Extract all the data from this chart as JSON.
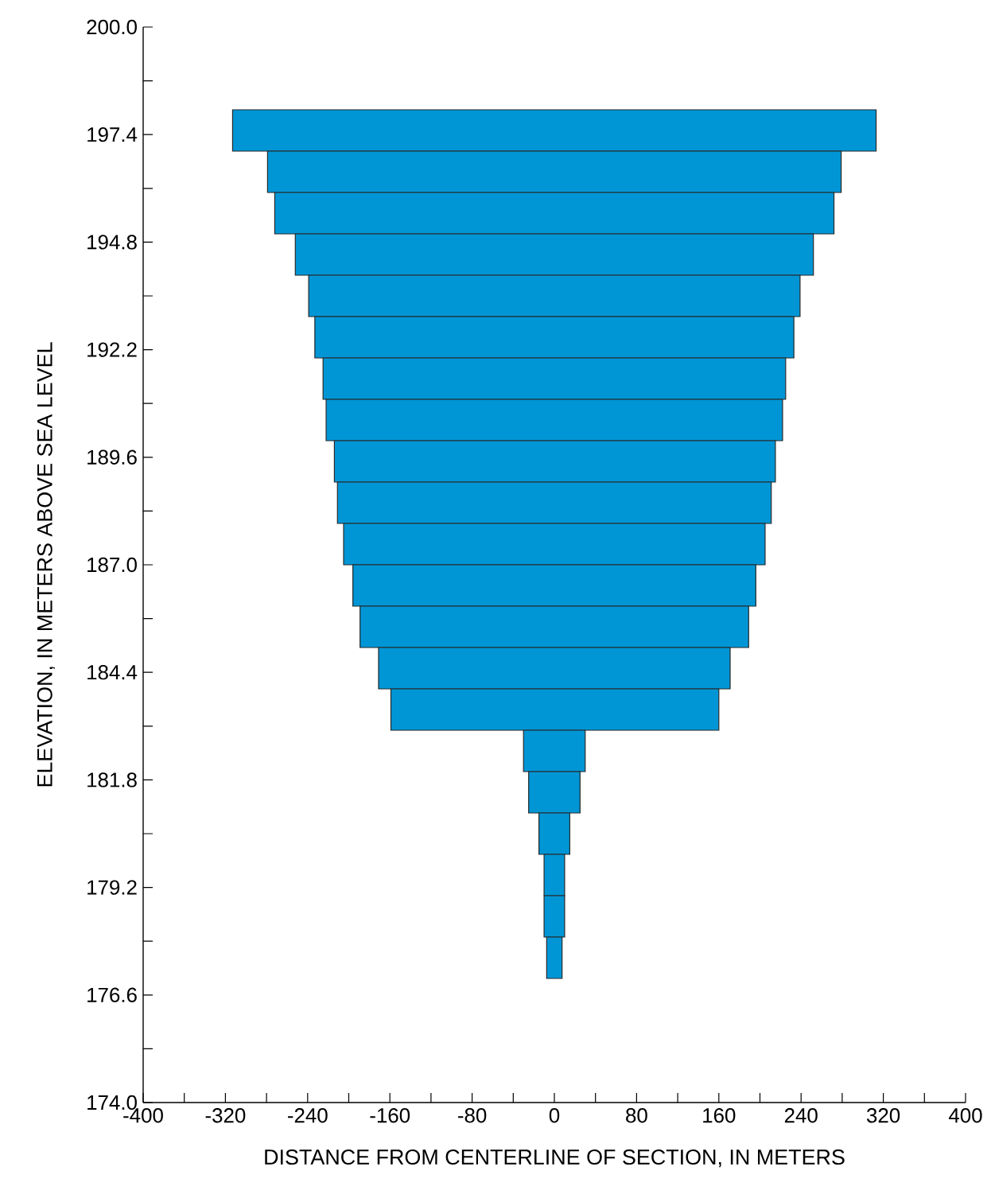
{
  "chart_data": {
    "type": "bar",
    "orientation": "horizontal",
    "xlabel": "DISTANCE FROM CENTERLINE OF SECTION, IN METERS",
    "ylabel": "ELEVATION, IN METERS ABOVE SEA LEVEL",
    "x": [
      197.5,
      196.5,
      195.5,
      194.5,
      193.5,
      192.5,
      191.5,
      190.5,
      189.5,
      188.5,
      187.5,
      186.5,
      185.5,
      184.5,
      183.5,
      182.5,
      181.5,
      180.5,
      179.5,
      178.5,
      177.5
    ],
    "base": [
      -313,
      -279,
      -272,
      -252,
      -239,
      -233,
      -225,
      -222,
      -214,
      -211,
      -205,
      -196,
      -189,
      -171,
      -159,
      -30,
      -25,
      -15,
      -10,
      -10,
      -7.5
    ],
    "values": [
      626,
      558,
      544,
      504,
      478,
      466,
      450,
      444,
      429,
      422,
      410,
      392,
      378,
      342,
      319,
      60,
      50,
      30,
      20,
      20,
      15
    ],
    "color": "#0096d6",
    "xlim": [
      -400,
      400
    ],
    "xticks": [
      -400,
      {
        "value": -360,
        "label": null
      },
      -320,
      {
        "value": -280,
        "label": null
      },
      -240,
      {
        "value": -200,
        "label": null
      },
      -160,
      {
        "value": -120,
        "label": null
      },
      -80,
      {
        "value": -40,
        "label": null
      },
      0,
      {
        "value": 40,
        "label": null
      },
      80,
      {
        "value": 120,
        "label": null
      },
      160,
      {
        "value": 200,
        "label": null
      },
      240,
      {
        "value": 280,
        "label": null
      },
      320,
      {
        "value": 360,
        "label": null
      },
      400
    ],
    "ylim": [
      174,
      200
    ],
    "yticks": [
      {
        "value": 174,
        "label": "174.0"
      },
      {
        "value": 175.3,
        "label": null
      },
      176.6,
      {
        "value": 177.9,
        "label": null
      },
      179.2,
      {
        "value": 180.5,
        "label": null
      },
      181.8,
      {
        "value": 183.1,
        "label": null
      },
      184.4,
      {
        "value": 185.7,
        "label": null
      },
      {
        "value": 187,
        "label": "187.0"
      },
      {
        "value": 188.3,
        "label": null
      },
      189.6,
      {
        "value": 190.9,
        "label": null
      },
      192.2,
      {
        "value": 193.5,
        "label": null
      },
      194.8,
      {
        "value": 196.1,
        "label": null
      },
      197.4,
      {
        "value": 198.7,
        "label": null
      },
      {
        "value": 200,
        "label": "200.0"
      }
    ]
  }
}
